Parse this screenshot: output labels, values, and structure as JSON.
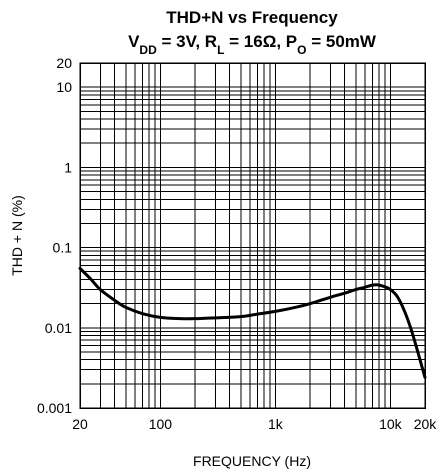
{
  "chart_data": {
    "type": "line",
    "title": {
      "line1": "THD+N vs Frequency",
      "line2_parts": [
        {
          "text": "V",
          "sub": false
        },
        {
          "text": "DD",
          "sub": true
        },
        {
          "text": " = 3V, R",
          "sub": false
        },
        {
          "text": "L",
          "sub": true
        },
        {
          "text": " = 16Ω, P",
          "sub": false
        },
        {
          "text": "O",
          "sub": true
        },
        {
          "text": " = 50mW",
          "sub": false
        }
      ]
    },
    "xlabel": "FREQUENCY (Hz)",
    "ylabel": "THD + N (%)",
    "xscale": "log",
    "yscale": "log",
    "xlim": [
      20,
      20000
    ],
    "ylim": [
      0.001,
      20
    ],
    "grid": true,
    "x_ticks": [
      {
        "value": 20,
        "label": "20"
      },
      {
        "value": 100,
        "label": "100"
      },
      {
        "value": 1000,
        "label": "1k"
      },
      {
        "value": 10000,
        "label": "10k"
      },
      {
        "value": 20000,
        "label": "20k"
      }
    ],
    "y_ticks": [
      {
        "value": 0.001,
        "label": "0.001"
      },
      {
        "value": 0.01,
        "label": "0.01"
      },
      {
        "value": 0.1,
        "label": "0.1"
      },
      {
        "value": 1,
        "label": "1"
      },
      {
        "value": 10,
        "label": "10"
      },
      {
        "value": 20,
        "label": "20"
      }
    ],
    "series": [
      {
        "x": [
          20,
          25,
          30,
          40,
          50,
          70,
          100,
          150,
          200,
          300,
          500,
          700,
          1000,
          1500,
          2000,
          3000,
          4000,
          5000,
          6000,
          7000,
          8000,
          10000,
          12000,
          15000,
          20000
        ],
        "y": [
          0.055,
          0.04,
          0.03,
          0.022,
          0.018,
          0.015,
          0.0135,
          0.013,
          0.013,
          0.0133,
          0.0138,
          0.0148,
          0.016,
          0.018,
          0.02,
          0.024,
          0.027,
          0.03,
          0.032,
          0.034,
          0.034,
          0.03,
          0.022,
          0.01,
          0.0024
        ]
      }
    ]
  }
}
